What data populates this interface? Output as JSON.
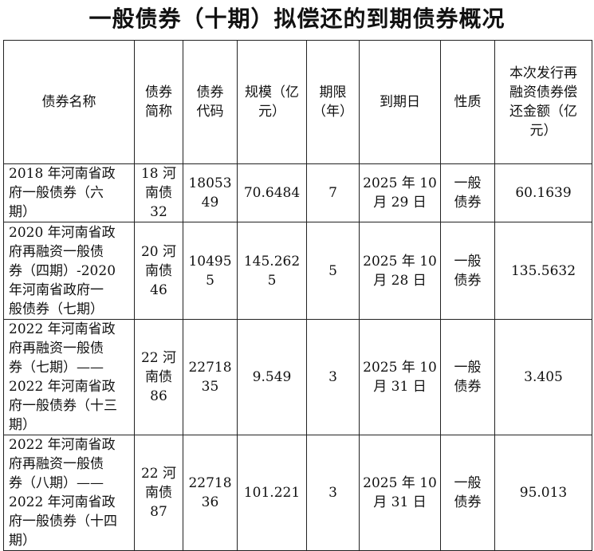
{
  "title": "一般债券（十期）拟偿还的到期债券概况",
  "headers": [
    "债券名称",
    "债券\n简称",
    "债券\n代码",
    "规模（亿\n元）",
    "期限\n（年）",
    "到期日",
    "性质",
    "本次发行再\n融资债券偿\n还金额（亿\n元）"
  ],
  "rows": [
    {
      "name": "2018 年河南省政\n府一般债券（六\n期）",
      "short": "18 河\n南债\n32",
      "code": "18053\n49",
      "scale": "70.6484",
      "term": "7",
      "maturity": "2025 年 10\n月 29 日",
      "type": "一般\n债券",
      "repay": "60.1639"
    },
    {
      "name": "2020 年河南省政\n府再融资一般债\n券（四期）-2020\n年河南省政府一\n般债券（七期）",
      "short": "20 河\n南债\n46",
      "code": "10495\n5",
      "scale": "145.262\n5",
      "term": "5",
      "maturity": "2025 年 10\n月 28 日",
      "type": "一般\n债券",
      "repay": "135.5632"
    },
    {
      "name": "2022 年河南省政\n府再融资一般债\n券（七期）——\n2022 年河南省政\n府一般债券（十三\n期）",
      "short": "22 河\n南债\n86",
      "code": "22718\n35",
      "scale": "9.549",
      "term": "3",
      "maturity": "2025 年 10\n月 31 日",
      "type": "一般\n债券",
      "repay": "3.405"
    },
    {
      "name": "2022 年河南省政\n府再融资一般债\n券（八期）——\n2022 年河南省政\n府一般债券（十四\n期）",
      "short": "22 河\n南债\n87",
      "code": "22718\n36",
      "scale": "101.221",
      "term": "3",
      "maturity": "2025 年 10\n月 31 日",
      "type": "一般\n债券",
      "repay": "95.013"
    }
  ]
}
